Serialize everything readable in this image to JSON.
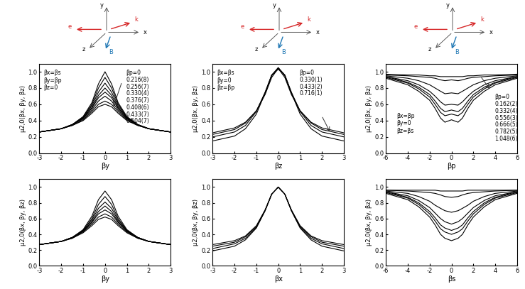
{
  "chart_data": [
    {
      "type": "line",
      "xlabel": "βy",
      "ylabel": "μ2,0(βx, βy, βz)",
      "annotations": [
        "βx=βs",
        "βy=βp",
        "βz=0"
      ],
      "xlim": [
        -3,
        3
      ],
      "xticks": [
        -3,
        -2,
        -1,
        0,
        1,
        2,
        3
      ],
      "ylim": [
        0,
        1.1
      ],
      "yticks": [
        {
          "value": 0,
          "label": "0.0"
        },
        {
          "value": 0.2,
          "label": "0.2"
        },
        {
          "value": 0.4,
          "label": "0.4"
        },
        {
          "value": 0.6,
          "label": "0.6"
        },
        {
          "value": 0.8,
          "label": "0.8"
        },
        {
          "value": 1,
          "label": "1.0"
        }
      ],
      "x": [
        -3,
        -2,
        -1.5,
        -1,
        -0.6,
        -0.3,
        0,
        0.3,
        0.6,
        1,
        1.5,
        2,
        3
      ],
      "series": [
        {
          "name": "βp=0",
          "color": "#000000",
          "values": [
            0.26,
            0.3,
            0.35,
            0.45,
            0.62,
            0.85,
            1.0,
            0.85,
            0.62,
            0.45,
            0.35,
            0.3,
            0.26
          ]
        },
        {
          "name": "0.216(8)",
          "color": "#000000",
          "values": [
            0.26,
            0.3,
            0.35,
            0.44,
            0.6,
            0.8,
            0.93,
            0.8,
            0.6,
            0.44,
            0.35,
            0.3,
            0.26
          ]
        },
        {
          "name": "0.256(7)",
          "color": "#000000",
          "values": [
            0.26,
            0.3,
            0.35,
            0.44,
            0.58,
            0.75,
            0.86,
            0.75,
            0.58,
            0.44,
            0.35,
            0.3,
            0.26
          ]
        },
        {
          "name": "0.330(4)",
          "color": "#000000",
          "values": [
            0.26,
            0.3,
            0.35,
            0.43,
            0.56,
            0.71,
            0.8,
            0.71,
            0.56,
            0.43,
            0.35,
            0.3,
            0.26
          ]
        },
        {
          "name": "0.376(7)",
          "color": "#000000",
          "values": [
            0.26,
            0.3,
            0.35,
            0.43,
            0.55,
            0.68,
            0.75,
            0.68,
            0.55,
            0.43,
            0.35,
            0.3,
            0.26
          ]
        },
        {
          "name": "0.408(6)",
          "color": "#000000",
          "values": [
            0.26,
            0.3,
            0.35,
            0.42,
            0.53,
            0.64,
            0.7,
            0.64,
            0.53,
            0.42,
            0.35,
            0.3,
            0.26
          ]
        },
        {
          "name": "0.433(7)",
          "color": "#000000",
          "values": [
            0.26,
            0.3,
            0.34,
            0.41,
            0.51,
            0.6,
            0.64,
            0.6,
            0.51,
            0.41,
            0.34,
            0.3,
            0.26
          ]
        },
        {
          "name": "0.504(7)",
          "color": "#000000",
          "values": [
            0.26,
            0.3,
            0.34,
            0.4,
            0.49,
            0.57,
            0.6,
            0.57,
            0.49,
            0.4,
            0.34,
            0.3,
            0.26
          ]
        }
      ]
    },
    {
      "type": "line",
      "xlabel": "βz",
      "ylabel": "μ2,0(βx, βy, βz)",
      "annotations": [
        "βx=βs",
        "βy=0",
        "βz=βp"
      ],
      "xlim": [
        -3,
        3
      ],
      "xticks": [
        -3,
        -2,
        -1,
        0,
        1,
        2,
        3
      ],
      "ylim": [
        0,
        1.1
      ],
      "yticks": [
        {
          "value": 0,
          "label": "0.0"
        },
        {
          "value": 0.2,
          "label": "0.2"
        },
        {
          "value": 0.4,
          "label": "0.4"
        },
        {
          "value": 0.6,
          "label": "0.6"
        },
        {
          "value": 0.8,
          "label": "0.8"
        },
        {
          "value": 1,
          "label": "1.0"
        }
      ],
      "x": [
        -3,
        -2,
        -1.5,
        -1,
        -0.6,
        -0.3,
        0,
        0.3,
        0.6,
        1,
        1.5,
        2,
        3
      ],
      "series": [
        {
          "name": "βp=0",
          "color": "#000000",
          "values": [
            0.25,
            0.31,
            0.38,
            0.52,
            0.72,
            0.93,
            1.04,
            0.93,
            0.72,
            0.52,
            0.38,
            0.31,
            0.25
          ]
        },
        {
          "name": "0.330(1)",
          "color": "#000000",
          "values": [
            0.23,
            0.29,
            0.37,
            0.52,
            0.74,
            0.95,
            1.05,
            0.95,
            0.74,
            0.52,
            0.37,
            0.29,
            0.23
          ]
        },
        {
          "name": "0.433(2)",
          "color": "#000000",
          "values": [
            0.2,
            0.26,
            0.34,
            0.51,
            0.75,
            0.96,
            1.05,
            0.96,
            0.75,
            0.51,
            0.34,
            0.26,
            0.2
          ]
        },
        {
          "name": "0.716(1)",
          "color": "#000000",
          "values": [
            0.15,
            0.21,
            0.3,
            0.48,
            0.74,
            0.96,
            1.03,
            0.96,
            0.74,
            0.48,
            0.3,
            0.21,
            0.15
          ]
        }
      ]
    },
    {
      "type": "line",
      "xlabel": "βp",
      "ylabel": "μ2,0(βx, βy, βz)",
      "annotations": [
        "βx=βp",
        "βy=0",
        "βz=βs"
      ],
      "xlim": [
        -6,
        6
      ],
      "xticks": [
        -6,
        -4,
        -2,
        0,
        2,
        4,
        6
      ],
      "ylim": [
        0,
        1.1
      ],
      "yticks": [
        {
          "value": 0,
          "label": "0.0"
        },
        {
          "value": 0.2,
          "label": "0.2"
        },
        {
          "value": 0.4,
          "label": "0.4"
        },
        {
          "value": 0.6,
          "label": "0.6"
        },
        {
          "value": 0.8,
          "label": "0.8"
        },
        {
          "value": 1,
          "label": "1.0"
        }
      ],
      "x": [
        -6,
        -4,
        -3,
        -2,
        -1.5,
        -1,
        -0.6,
        0,
        0.6,
        1,
        1.5,
        2,
        3,
        4,
        6
      ],
      "series": [
        {
          "name": "βp=0",
          "color": "#000000",
          "values": [
            0.97,
            0.96,
            0.96,
            0.95,
            0.95,
            0.94,
            0.94,
            0.94,
            0.94,
            0.94,
            0.95,
            0.95,
            0.96,
            0.96,
            0.97
          ]
        },
        {
          "name": "0.162(2)",
          "color": "#000000",
          "values": [
            0.96,
            0.95,
            0.94,
            0.93,
            0.92,
            0.9,
            0.89,
            0.9,
            0.89,
            0.9,
            0.92,
            0.93,
            0.94,
            0.95,
            0.96
          ]
        },
        {
          "name": "0.332(4)",
          "color": "#000000",
          "values": [
            0.95,
            0.92,
            0.89,
            0.84,
            0.8,
            0.76,
            0.73,
            0.74,
            0.73,
            0.76,
            0.8,
            0.84,
            0.89,
            0.92,
            0.95
          ]
        },
        {
          "name": "0.556(3)",
          "color": "#000000",
          "values": [
            0.94,
            0.89,
            0.84,
            0.76,
            0.7,
            0.63,
            0.59,
            0.6,
            0.59,
            0.63,
            0.7,
            0.76,
            0.84,
            0.89,
            0.94
          ]
        },
        {
          "name": "0.666(5)",
          "color": "#000000",
          "values": [
            0.94,
            0.87,
            0.81,
            0.72,
            0.64,
            0.55,
            0.51,
            0.53,
            0.51,
            0.55,
            0.64,
            0.72,
            0.81,
            0.87,
            0.94
          ]
        },
        {
          "name": "0.782(5)",
          "color": "#000000",
          "values": [
            0.93,
            0.86,
            0.79,
            0.69,
            0.6,
            0.5,
            0.46,
            0.48,
            0.46,
            0.5,
            0.6,
            0.69,
            0.79,
            0.86,
            0.93
          ]
        },
        {
          "name": "1.048(6)",
          "color": "#000000",
          "values": [
            0.92,
            0.84,
            0.76,
            0.65,
            0.55,
            0.43,
            0.38,
            0.41,
            0.38,
            0.43,
            0.55,
            0.65,
            0.76,
            0.84,
            0.92
          ]
        }
      ]
    },
    {
      "type": "line",
      "xlabel": "βy",
      "ylabel": "μ2,0(βx, βy, βz)",
      "xlim": [
        -3,
        3
      ],
      "xticks": [
        -3,
        -2,
        -1,
        0,
        1,
        2,
        3
      ],
      "ylim": [
        0,
        1.1
      ],
      "yticks": [
        {
          "value": 0,
          "label": "0.0"
        },
        {
          "value": 0.2,
          "label": "0.2"
        },
        {
          "value": 0.4,
          "label": "0.4"
        },
        {
          "value": 0.6,
          "label": "0.6"
        },
        {
          "value": 0.8,
          "label": "0.8"
        },
        {
          "value": 1,
          "label": "1.0"
        }
      ],
      "x": [
        -3,
        -2,
        -1.5,
        -1,
        -0.6,
        -0.3,
        0,
        0.3,
        0.6,
        1,
        1.5,
        2,
        3
      ],
      "series": [
        {
          "color": "#000000",
          "values": [
            0.27,
            0.31,
            0.36,
            0.46,
            0.63,
            0.84,
            0.95,
            0.84,
            0.63,
            0.46,
            0.36,
            0.31,
            0.27
          ]
        },
        {
          "color": "#000000",
          "values": [
            0.27,
            0.31,
            0.36,
            0.45,
            0.6,
            0.78,
            0.88,
            0.78,
            0.6,
            0.45,
            0.36,
            0.31,
            0.27
          ]
        },
        {
          "color": "#000000",
          "values": [
            0.27,
            0.31,
            0.36,
            0.45,
            0.58,
            0.73,
            0.81,
            0.73,
            0.58,
            0.45,
            0.36,
            0.31,
            0.27
          ]
        },
        {
          "color": "#000000",
          "values": [
            0.27,
            0.31,
            0.36,
            0.44,
            0.56,
            0.69,
            0.76,
            0.69,
            0.56,
            0.44,
            0.36,
            0.31,
            0.27
          ]
        },
        {
          "color": "#000000",
          "values": [
            0.27,
            0.31,
            0.36,
            0.44,
            0.55,
            0.66,
            0.71,
            0.66,
            0.55,
            0.44,
            0.36,
            0.31,
            0.27
          ]
        },
        {
          "color": "#000000",
          "values": [
            0.27,
            0.31,
            0.35,
            0.43,
            0.53,
            0.62,
            0.66,
            0.62,
            0.53,
            0.43,
            0.35,
            0.31,
            0.27
          ]
        },
        {
          "color": "#000000",
          "values": [
            0.27,
            0.31,
            0.35,
            0.42,
            0.51,
            0.59,
            0.62,
            0.59,
            0.51,
            0.42,
            0.35,
            0.31,
            0.27
          ]
        }
      ]
    },
    {
      "type": "line",
      "xlabel": "βx",
      "ylabel": "μ2,0(βx, βy, βz)",
      "xlim": [
        -3,
        3
      ],
      "xticks": [
        -3,
        -2,
        -1,
        0,
        1,
        2,
        3
      ],
      "ylim": [
        0,
        1.1
      ],
      "yticks": [
        {
          "value": 0,
          "label": "0.0"
        },
        {
          "value": 0.2,
          "label": "0.2"
        },
        {
          "value": 0.4,
          "label": "0.4"
        },
        {
          "value": 0.6,
          "label": "0.6"
        },
        {
          "value": 0.8,
          "label": "0.8"
        },
        {
          "value": 1,
          "label": "1.0"
        }
      ],
      "x": [
        -3,
        -2,
        -1.5,
        -1,
        -0.6,
        -0.3,
        0,
        0.3,
        0.6,
        1,
        1.5,
        2,
        3
      ],
      "series": [
        {
          "color": "#000000",
          "values": [
            0.27,
            0.32,
            0.38,
            0.51,
            0.71,
            0.91,
            1.0,
            0.91,
            0.71,
            0.51,
            0.38,
            0.32,
            0.27
          ]
        },
        {
          "color": "#000000",
          "values": [
            0.25,
            0.3,
            0.37,
            0.5,
            0.71,
            0.91,
            1.0,
            0.91,
            0.71,
            0.5,
            0.37,
            0.3,
            0.25
          ]
        },
        {
          "color": "#000000",
          "values": [
            0.22,
            0.28,
            0.35,
            0.49,
            0.7,
            0.91,
            1.0,
            0.91,
            0.7,
            0.49,
            0.35,
            0.28,
            0.22
          ]
        },
        {
          "color": "#000000",
          "values": [
            0.19,
            0.25,
            0.33,
            0.48,
            0.7,
            0.91,
            1.0,
            0.91,
            0.7,
            0.48,
            0.33,
            0.25,
            0.19
          ]
        }
      ]
    },
    {
      "type": "line",
      "xlabel": "βs",
      "ylabel": "μ2,0(βx, βy, βz)",
      "xlim": [
        -6,
        6
      ],
      "xticks": [
        -6,
        -4,
        -2,
        0,
        2,
        4,
        6
      ],
      "ylim": [
        0,
        1.1
      ],
      "yticks": [
        {
          "value": 0,
          "label": "0.0"
        },
        {
          "value": 0.2,
          "label": "0.2"
        },
        {
          "value": 0.4,
          "label": "0.4"
        },
        {
          "value": 0.6,
          "label": "0.6"
        },
        {
          "value": 0.8,
          "label": "0.8"
        },
        {
          "value": 1,
          "label": "1.0"
        }
      ],
      "x": [
        -6,
        -4,
        -3,
        -2,
        -1.5,
        -1,
        -0.6,
        0,
        0.6,
        1,
        1.5,
        2,
        3,
        4,
        6
      ],
      "series": [
        {
          "color": "#000000",
          "values": [
            0.96,
            0.96,
            0.96,
            0.96,
            0.96,
            0.95,
            0.95,
            0.95,
            0.95,
            0.95,
            0.96,
            0.96,
            0.96,
            0.96,
            0.96
          ]
        },
        {
          "color": "#000000",
          "values": [
            0.96,
            0.95,
            0.94,
            0.93,
            0.92,
            0.9,
            0.88,
            0.87,
            0.88,
            0.9,
            0.92,
            0.93,
            0.94,
            0.95,
            0.96
          ]
        },
        {
          "color": "#000000",
          "values": [
            0.95,
            0.92,
            0.88,
            0.82,
            0.77,
            0.73,
            0.7,
            0.68,
            0.7,
            0.73,
            0.77,
            0.82,
            0.88,
            0.92,
            0.95
          ]
        },
        {
          "color": "#000000",
          "values": [
            0.94,
            0.89,
            0.83,
            0.74,
            0.67,
            0.6,
            0.56,
            0.53,
            0.56,
            0.6,
            0.67,
            0.74,
            0.83,
            0.89,
            0.94
          ]
        },
        {
          "color": "#000000",
          "values": [
            0.94,
            0.87,
            0.8,
            0.69,
            0.61,
            0.52,
            0.48,
            0.45,
            0.48,
            0.52,
            0.61,
            0.69,
            0.8,
            0.87,
            0.94
          ]
        },
        {
          "color": "#000000",
          "values": [
            0.93,
            0.86,
            0.78,
            0.66,
            0.57,
            0.47,
            0.43,
            0.4,
            0.43,
            0.47,
            0.57,
            0.66,
            0.78,
            0.86,
            0.93
          ]
        },
        {
          "color": "#000000",
          "values": [
            0.92,
            0.84,
            0.75,
            0.62,
            0.52,
            0.4,
            0.35,
            0.32,
            0.35,
            0.4,
            0.52,
            0.62,
            0.75,
            0.84,
            0.92
          ]
        }
      ]
    }
  ],
  "diagrams": [
    {
      "labels": [
        "y",
        "x",
        "z",
        "e",
        "k",
        "B"
      ]
    },
    {
      "labels": [
        "y",
        "x",
        "z",
        "e",
        "k",
        "B"
      ]
    },
    {
      "labels": [
        "y",
        "x",
        "z",
        "e",
        "k",
        "B"
      ]
    }
  ]
}
